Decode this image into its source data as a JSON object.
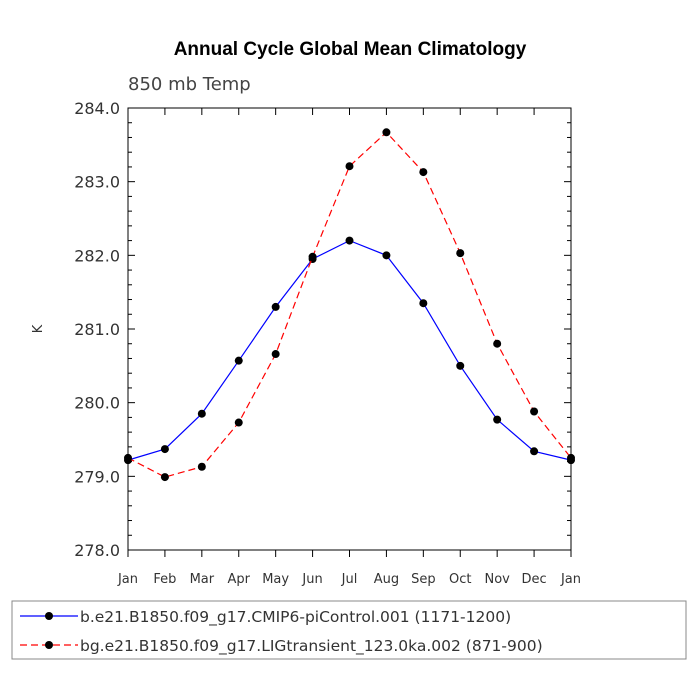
{
  "chart_data": {
    "type": "line",
    "title": "Annual Cycle Global Mean Climatology",
    "subtitle": "850 mb Temp",
    "xlabel": "",
    "ylabel": "K",
    "categories": [
      "Jan",
      "Feb",
      "Mar",
      "Apr",
      "May",
      "Jun",
      "Jul",
      "Aug",
      "Sep",
      "Oct",
      "Nov",
      "Dec",
      "Jan"
    ],
    "ylim": [
      278.0,
      284.0
    ],
    "yticks": [
      "278.0",
      "279.0",
      "280.0",
      "281.0",
      "282.0",
      "283.0",
      "284.0"
    ],
    "grid": false,
    "legend_position": "bottom",
    "series": [
      {
        "name": "b.e21.B1850.f09_g17.CMIP6-piControl.001 (1171-1200)",
        "color": "#0000ff",
        "line_style": "solid",
        "values": [
          279.22,
          279.37,
          279.85,
          280.57,
          281.3,
          281.95,
          282.2,
          282.0,
          281.35,
          280.5,
          279.77,
          279.34,
          279.22
        ]
      },
      {
        "name": "bg.e21.B1850.f09_g17.LIGtransient_123.0ka.002 (871-900)",
        "color": "#ff0000",
        "line_style": "dashed",
        "values": [
          279.25,
          278.99,
          279.13,
          279.73,
          280.66,
          281.98,
          283.21,
          283.67,
          283.13,
          282.03,
          280.8,
          279.88,
          279.25
        ]
      }
    ]
  }
}
